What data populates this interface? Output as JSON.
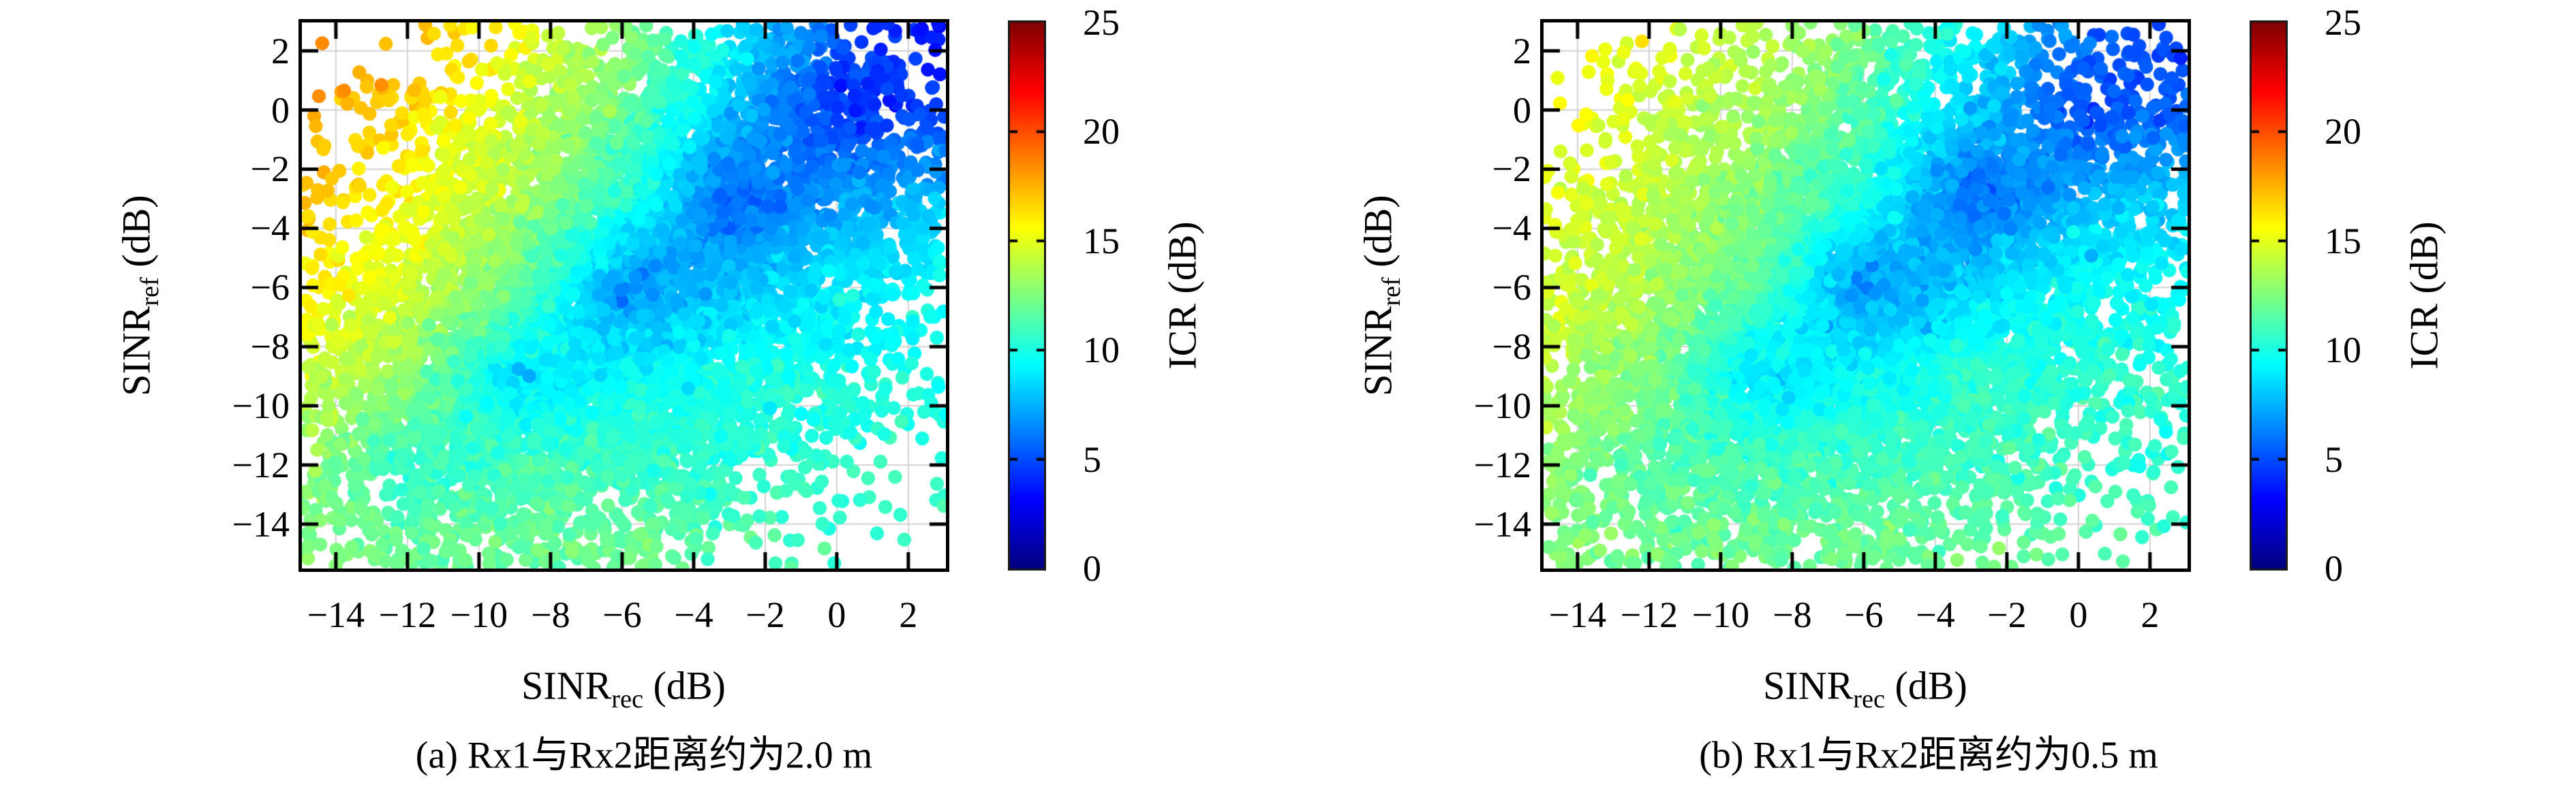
{
  "chart_data": [
    {
      "type": "scatter",
      "panel": "a",
      "caption": "(a) Rx1与Rx2距离约为2.0 m",
      "xlabel_base": "SINR",
      "xlabel_sub": "rec",
      "xlabel_unit": " (dB)",
      "ylabel_base": "SINR",
      "ylabel_sub": "ref",
      "ylabel_unit": " (dB)",
      "xlim": [
        -14.95,
        3.05
      ],
      "ylim": [
        -15.5,
        2.96
      ],
      "xticks": [
        -14,
        -12,
        -10,
        -8,
        -6,
        -4,
        -2,
        0,
        2
      ],
      "xtick_labels": [
        "−14",
        "−12",
        "−10",
        "−8",
        "−6",
        "−4",
        "−2",
        "0",
        "2"
      ],
      "yticks": [
        2,
        0,
        -2,
        -4,
        -6,
        -8,
        -10,
        -12,
        -14
      ],
      "ytick_labels": [
        "2",
        "0",
        "−2",
        "−4",
        "−6",
        "−8",
        "−10",
        "−12",
        "−14"
      ],
      "grid": true,
      "colorbar": {
        "label": "ICR (dB)",
        "lim": [
          0,
          25
        ],
        "ticks": [
          0,
          5,
          10,
          15,
          20,
          25
        ],
        "tick_labels": [
          "0",
          "5",
          "10",
          "15",
          "20",
          "25"
        ],
        "colormap": "jet"
      },
      "points": {
        "n": 7000,
        "seed": 20,
        "mean": [
          -6.2,
          -6.3
        ],
        "std": [
          5.1,
          5.2
        ],
        "corr": 0.38,
        "radius_px": 10.3
      },
      "icr_field": {
        "rec_nodes": [
          -15,
          -12,
          -9,
          -6,
          -3,
          0,
          3
        ],
        "ref_nodes": [
          3,
          0,
          -3,
          -6,
          -9,
          -12,
          -15
        ],
        "grid_db": [
          [
            18.5,
            17.5,
            15.5,
            13.0,
            9.5,
            5.5,
            3.0
          ],
          [
            18.0,
            16.5,
            14.5,
            12.0,
            8.0,
            4.5,
            4.5
          ],
          [
            17.0,
            15.5,
            13.5,
            10.5,
            5.5,
            7.0,
            8.0
          ],
          [
            16.0,
            14.5,
            12.0,
            6.5,
            8.0,
            9.0,
            9.5
          ],
          [
            14.5,
            13.0,
            8.5,
            9.5,
            10.0,
            10.0,
            10.0
          ],
          [
            13.0,
            10.5,
            11.0,
            11.0,
            10.5,
            10.5,
            10.5
          ],
          [
            12.5,
            12.0,
            12.0,
            12.0,
            11.5,
            11.0,
            11.0
          ]
        ],
        "noise_std_db": 0.45
      }
    },
    {
      "type": "scatter",
      "panel": "b",
      "caption": "(b) Rx1与Rx2距离约为0.5 m",
      "xlabel_base": "SINR",
      "xlabel_sub": "rec",
      "xlabel_unit": " (dB)",
      "ylabel_base": "SINR",
      "ylabel_sub": "ref",
      "ylabel_unit": " (dB)",
      "xlim": [
        -14.95,
        3.05
      ],
      "ylim": [
        -15.5,
        2.96
      ],
      "xticks": [
        -14,
        -12,
        -10,
        -8,
        -6,
        -4,
        -2,
        0,
        2
      ],
      "xtick_labels": [
        "−14",
        "−12",
        "−10",
        "−8",
        "−6",
        "−4",
        "−2",
        "0",
        "2"
      ],
      "yticks": [
        2,
        0,
        -2,
        -4,
        -6,
        -8,
        -10,
        -12,
        -14
      ],
      "ytick_labels": [
        "2",
        "0",
        "−2",
        "−4",
        "−6",
        "−8",
        "−10",
        "−12",
        "−14"
      ],
      "grid": true,
      "colorbar": {
        "label": "ICR (dB)",
        "lim": [
          0,
          25
        ],
        "ticks": [
          0,
          5,
          10,
          15,
          20,
          25
        ],
        "tick_labels": [
          "0",
          "5",
          "10",
          "15",
          "20",
          "25"
        ],
        "colormap": "jet"
      },
      "points": {
        "n": 7200,
        "seed": 77,
        "mean": [
          -6.1,
          -6.4
        ],
        "std": [
          5.2,
          5.3
        ],
        "corr": 0.3,
        "radius_px": 10.3
      },
      "icr_field": {
        "rec_nodes": [
          -15,
          -12,
          -9,
          -6,
          -3,
          0,
          3
        ],
        "ref_nodes": [
          3,
          0,
          -3,
          -6,
          -9,
          -12,
          -15
        ],
        "grid_db": [
          [
            15.5,
            15.0,
            14.0,
            12.5,
            9.5,
            6.0,
            4.5
          ],
          [
            15.5,
            14.5,
            13.5,
            11.5,
            8.0,
            5.0,
            5.5
          ],
          [
            15.0,
            14.0,
            12.5,
            10.0,
            5.5,
            7.5,
            8.5
          ],
          [
            14.5,
            13.5,
            11.5,
            6.5,
            8.5,
            9.5,
            9.5
          ],
          [
            14.0,
            12.5,
            8.5,
            9.5,
            10.5,
            10.5,
            10.5
          ],
          [
            13.0,
            11.5,
            11.0,
            11.0,
            11.0,
            11.0,
            10.5
          ],
          [
            12.5,
            12.0,
            12.0,
            12.0,
            12.0,
            11.5,
            11.0
          ]
        ],
        "noise_std_db": 0.45
      }
    }
  ],
  "style_colors": {
    "grid_line": "#d2d2d2",
    "frame": "#000000",
    "background": "#ffffff"
  }
}
